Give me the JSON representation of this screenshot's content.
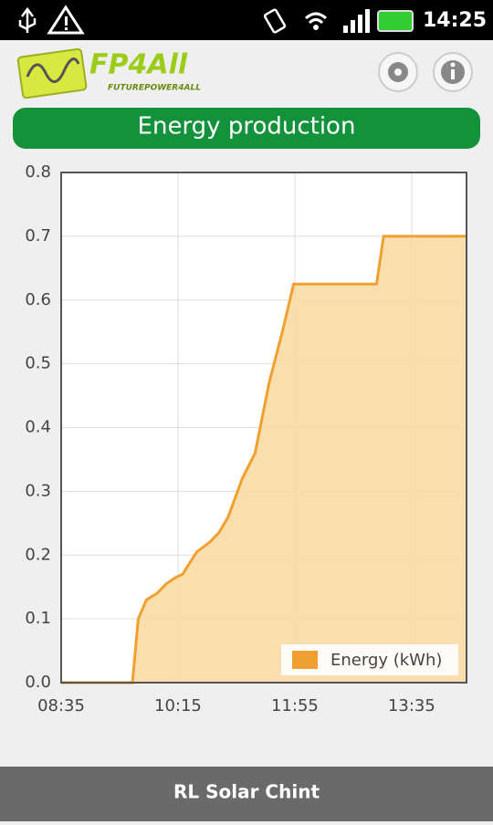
{
  "status_bar": {
    "time": "14:25"
  },
  "app_header": {
    "logo_text": "FP4All",
    "logo_subtext": "FUTUREPOWER4ALL"
  },
  "title": "Energy production",
  "chart_data": {
    "type": "area",
    "x": [
      "08:35",
      "09:36",
      "09:41",
      "09:48",
      "09:57",
      "10:05",
      "10:13",
      "10:19",
      "10:31",
      "10:42",
      "10:50",
      "10:58",
      "11:10",
      "11:21",
      "11:33",
      "11:45",
      "11:54",
      "13:05",
      "13:11",
      "14:22"
    ],
    "series": [
      {
        "name": "Energy (kWh)",
        "color": "#f0a030",
        "fill": "#f9d9a0",
        "values": [
          0,
          0,
          0.1,
          0.13,
          0.14,
          0.155,
          0.165,
          0.17,
          0.205,
          0.22,
          0.235,
          0.26,
          0.32,
          0.36,
          0.47,
          0.555,
          0.625,
          0.625,
          0.7,
          0.7
        ]
      }
    ],
    "xlim": [
      "08:35",
      "14:22"
    ],
    "xticks": [
      "08:35",
      "10:15",
      "11:55",
      "13:35"
    ],
    "ylim": [
      0,
      0.8
    ],
    "yticks": [
      {
        "value": 0,
        "label": "0.0"
      },
      0.1,
      0.2,
      0.3,
      0.4,
      0.5,
      0.6,
      0.7,
      0.8
    ],
    "grid": true,
    "legend": "lower-right"
  },
  "footer": {
    "label": "RL Solar Chint"
  }
}
